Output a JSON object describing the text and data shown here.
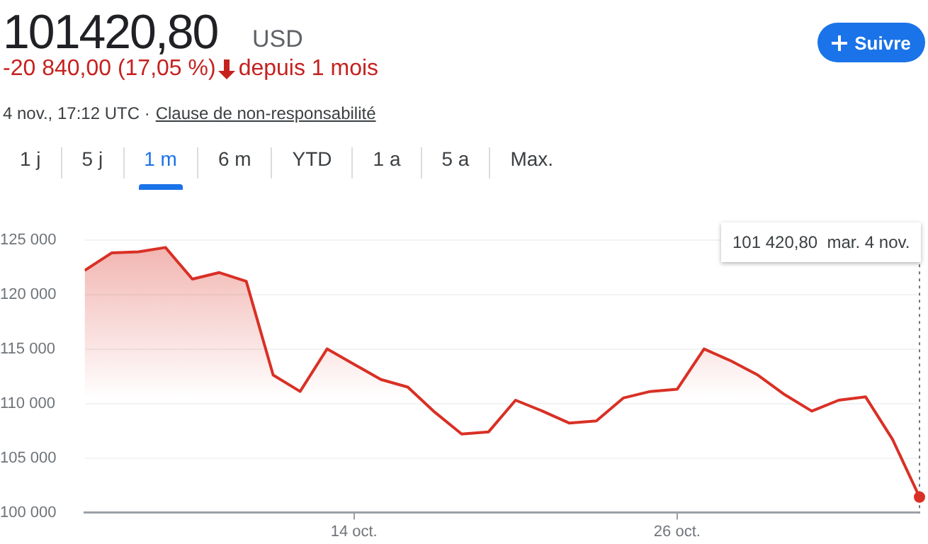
{
  "chart_data": {
    "type": "area",
    "title": "101420,80",
    "annotations": [
      "USD",
      "-20 840,00 (17,05 %)",
      "depuis 1 mois",
      "4 nov., 17:12 UTC ·",
      "Clause de non-responsabilité",
      "Suivre",
      "1 j",
      "5 j",
      "1 m",
      "6 m",
      "YTD",
      "1 a",
      "5 a",
      "Max.",
      "101 420,80  mar. 4 nov."
    ],
    "x": [
      "--10-04",
      "--10-05",
      "--10-06",
      "--10-07",
      "--10-08",
      "--10-09",
      "--10-10",
      "--10-11",
      "--10-12",
      "--10-13",
      "--10-14",
      "--10-15",
      "--10-16",
      "--10-17",
      "--10-18",
      "--10-19",
      "--10-20",
      "--10-21",
      "--10-22",
      "--10-23",
      "--10-24",
      "--10-25",
      "--10-26",
      "--10-27",
      "--10-28",
      "--10-29",
      "--10-30",
      "--10-31",
      "--11-01",
      "--11-02",
      "--11-03",
      "--11-04"
    ],
    "series": [
      {
        "color": "#d93025",
        "values": [
          122200,
          123800,
          123900,
          124300,
          121400,
          122000,
          121200,
          112600,
          111100,
          115000,
          113600,
          112200,
          111500,
          109200,
          107200,
          107400,
          110300,
          109300,
          108200,
          108400,
          110500,
          111100,
          111300,
          115000,
          113900,
          112600,
          110800,
          109300,
          110300,
          110600,
          106700,
          101420.8
        ]
      }
    ],
    "xlim": [
      "--10-04",
      "--11-04"
    ],
    "xticks": [
      {
        "value": "--10-14",
        "label": "14 oct."
      },
      {
        "value": "--10-26",
        "label": "26 oct."
      }
    ],
    "ylim": [
      100000,
      126000
    ],
    "yticks": [
      {
        "value": 100000,
        "label": "100 000"
      },
      {
        "value": 105000,
        "label": "105 000"
      },
      {
        "value": 110000,
        "label": "110 000"
      },
      {
        "value": 115000,
        "label": "115 000"
      },
      {
        "value": 120000,
        "label": "120 000"
      },
      {
        "value": 125000,
        "label": "125 000"
      }
    ],
    "ref_lines": [
      {
        "axis": "x",
        "value": "--11-04",
        "color": "#70757a",
        "line_style": "dotted"
      }
    ],
    "grid": "y",
    "legend": false,
    "marker": "none",
    "line_style": "solid"
  }
}
